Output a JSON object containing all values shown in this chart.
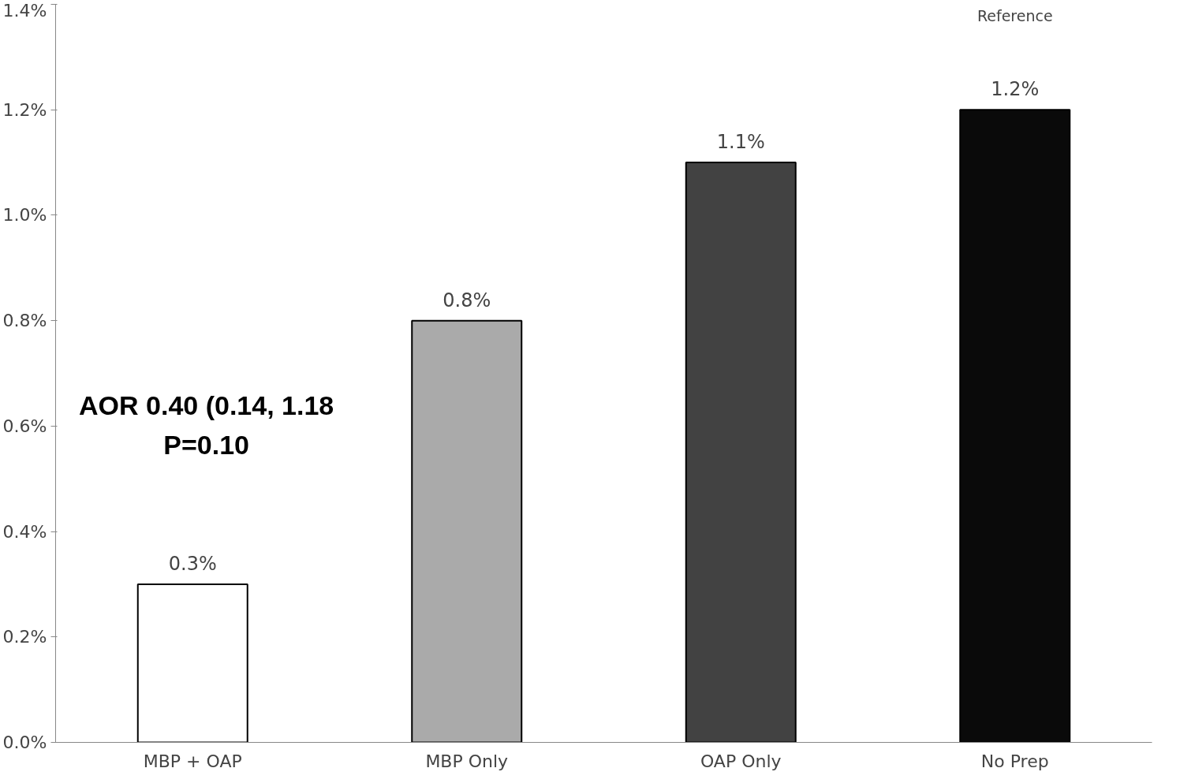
{
  "chart_data": {
    "type": "bar",
    "categories": [
      "MBP + OAP",
      "MBP Only",
      "OAP Only",
      "No Prep"
    ],
    "values": [
      0.3,
      0.8,
      1.1,
      1.2
    ],
    "colors": [
      "#ffffff",
      "#aaaaaa",
      "#424242",
      "#0a0a0a"
    ],
    "value_labels": [
      "0.3%",
      "0.8%",
      "1.1%",
      "1.2%"
    ],
    "ylim": [
      0,
      1.4
    ],
    "yticks": [
      {
        "value": 0,
        "label": "0.0%"
      },
      {
        "value": 0.2,
        "label": "0.2%"
      },
      {
        "value": 0.4,
        "label": "0.4%"
      },
      {
        "value": 0.6,
        "label": "0.6%"
      },
      {
        "value": 0.8,
        "label": "0.8%"
      },
      {
        "value": 1.0,
        "label": "1.0%"
      },
      {
        "value": 1.2,
        "label": "1.2%"
      },
      {
        "value": 1.4,
        "label": "1.4%"
      }
    ],
    "grid": false,
    "annotations": [
      "Reference",
      "AOR 0.40 (0.14, 1.18\nP=0.10"
    ]
  }
}
